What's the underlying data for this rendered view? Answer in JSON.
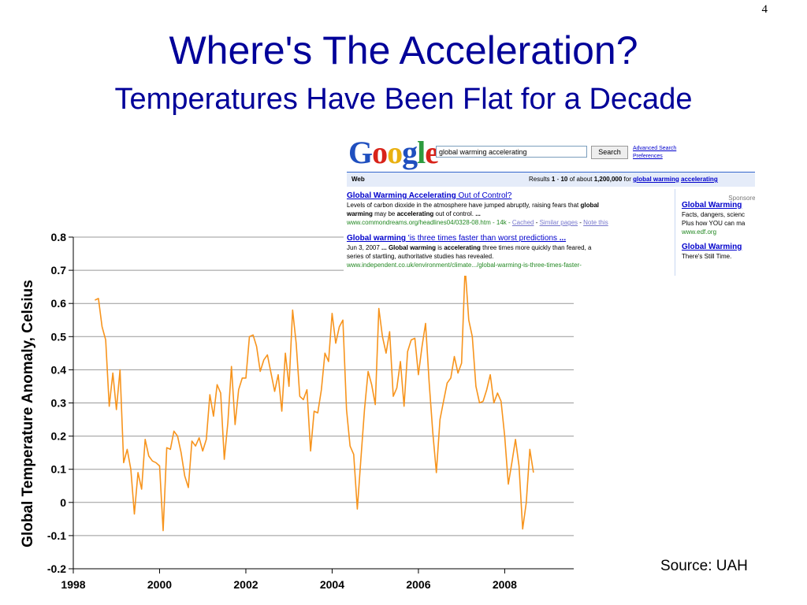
{
  "slide": {
    "page_number": "4",
    "title": "Where's The Acceleration?",
    "subtitle": "Temperatures Have Been Flat for a Decade",
    "source": "Source:  UAH"
  },
  "colors": {
    "title": "#000099",
    "line": "#F7941D",
    "gridline": "#999999"
  },
  "google_inset": {
    "logo": "Google",
    "query": "global warming accelerating",
    "search_button": "Search",
    "advanced_search": "Advanced Search",
    "preferences": "Preferences",
    "tab": "Web",
    "results_prefix": "Results ",
    "results_range_start": "1",
    "results_range_sep": " - ",
    "results_range_end": "10",
    "results_of": " of about ",
    "results_count": "1,200,000",
    "results_for": " for ",
    "results_term1": "global warming",
    "results_term2": "accelerating",
    "sponsored": "Sponsored",
    "results": [
      {
        "title_bold": "Global Warming Accelerating",
        "title_rest": " Out of Control?",
        "snippet1": "Levels of carbon dioxide in the atmosphere have jumped abruptly, raising fears that ",
        "snippet1_bold": "global",
        "snippet2_bold": "warming",
        "snippet2": " may be ",
        "snippet2_bold2": "accelerating",
        "snippet2_end": " out of control. ",
        "snippet2_ell": "...",
        "url": "www.commondreams.org/headlines04/0328-08.htm - 14k - ",
        "cached": "Cached",
        "sep": " - ",
        "similar": "Similar pages",
        "sep2": " - ",
        "note": "Note this"
      },
      {
        "title_bold": "Global warming",
        "title_rest": " 'is three times faster than worst predictions ",
        "title_ell": "...",
        "snippet1": "Jun 3, 2007 ",
        "snippet1_b1": "...",
        "snippet1_sp": " ",
        "snippet1_b2": "Global warming",
        "snippet1_mid": " is ",
        "snippet1_b3": "accelerating",
        "snippet1_end": " three times more quickly than feared, a",
        "snippet2": "series of startling, authoritative studies has revealed.",
        "url": "www.independent.co.uk/environment/climate.../global-warming-is-three-times-faster-"
      }
    ],
    "ads": [
      {
        "title": "Global Warming",
        "line1": "Facts, dangers, scienc",
        "line2": "Plus how YOU can ma",
        "url": "www.edf.org"
      },
      {
        "title": "Global Warming",
        "line1": "There's Still Time."
      }
    ]
  },
  "chart_data": {
    "type": "line",
    "title": "",
    "xlabel": "",
    "ylabel": "Global Temperature Anomaly, Celsius",
    "xlim": [
      1998,
      2009.6
    ],
    "ylim": [
      -0.2,
      0.8
    ],
    "x_ticks": [
      1998,
      2000,
      2002,
      2004,
      2006,
      2008
    ],
    "x_tick_labels": [
      "1998",
      "2000",
      "2002",
      "2004",
      "2006",
      "2008"
    ],
    "y_ticks": [
      -0.2,
      -0.1,
      0,
      0.1,
      0.2,
      0.3,
      0.4,
      0.5,
      0.6,
      0.7,
      0.8
    ],
    "y_tick_labels": [
      "-0.2",
      "-0.1",
      "0",
      "0.1",
      "0.2",
      "0.3",
      "0.4",
      "0.5",
      "0.6",
      "0.7",
      "0.8"
    ],
    "grid": "horizontal",
    "legend": "none",
    "series": [
      {
        "x_start": 1998.5,
        "x_step": 0.08333,
        "values": [
          0.61,
          0.615,
          0.53,
          0.49,
          0.29,
          0.39,
          0.28,
          0.4,
          0.12,
          0.16,
          0.1,
          -0.035,
          0.09,
          0.04,
          0.19,
          0.14,
          0.125,
          0.12,
          0.11,
          -0.085,
          0.165,
          0.16,
          0.215,
          0.2,
          0.15,
          0.08,
          0.045,
          0.185,
          0.17,
          0.195,
          0.155,
          0.19,
          0.325,
          0.26,
          0.355,
          0.33,
          0.13,
          0.24,
          0.41,
          0.235,
          0.34,
          0.375,
          0.375,
          0.5,
          0.505,
          0.47,
          0.395,
          0.43,
          0.445,
          0.39,
          0.335,
          0.385,
          0.275,
          0.45,
          0.35,
          0.58,
          0.48,
          0.32,
          0.31,
          0.34,
          0.155,
          0.275,
          0.27,
          0.34,
          0.45,
          0.425,
          0.57,
          0.48,
          0.53,
          0.55,
          0.28,
          0.17,
          0.145,
          -0.02,
          0.13,
          0.28,
          0.395,
          0.355,
          0.295,
          0.585,
          0.5,
          0.45,
          0.515,
          0.32,
          0.345,
          0.425,
          0.29,
          0.455,
          0.49,
          0.495,
          0.385,
          0.47,
          0.54,
          0.36,
          0.21,
          0.09,
          0.25,
          0.305,
          0.36,
          0.375,
          0.44,
          0.39,
          0.42,
          0.71,
          0.55,
          0.5,
          0.35,
          0.3,
          0.305,
          0.34,
          0.385,
          0.3,
          0.33,
          0.305,
          0.2,
          0.055,
          0.12,
          0.19,
          0.11,
          -0.08,
          0.0,
          0.16,
          0.09
        ]
      }
    ]
  }
}
